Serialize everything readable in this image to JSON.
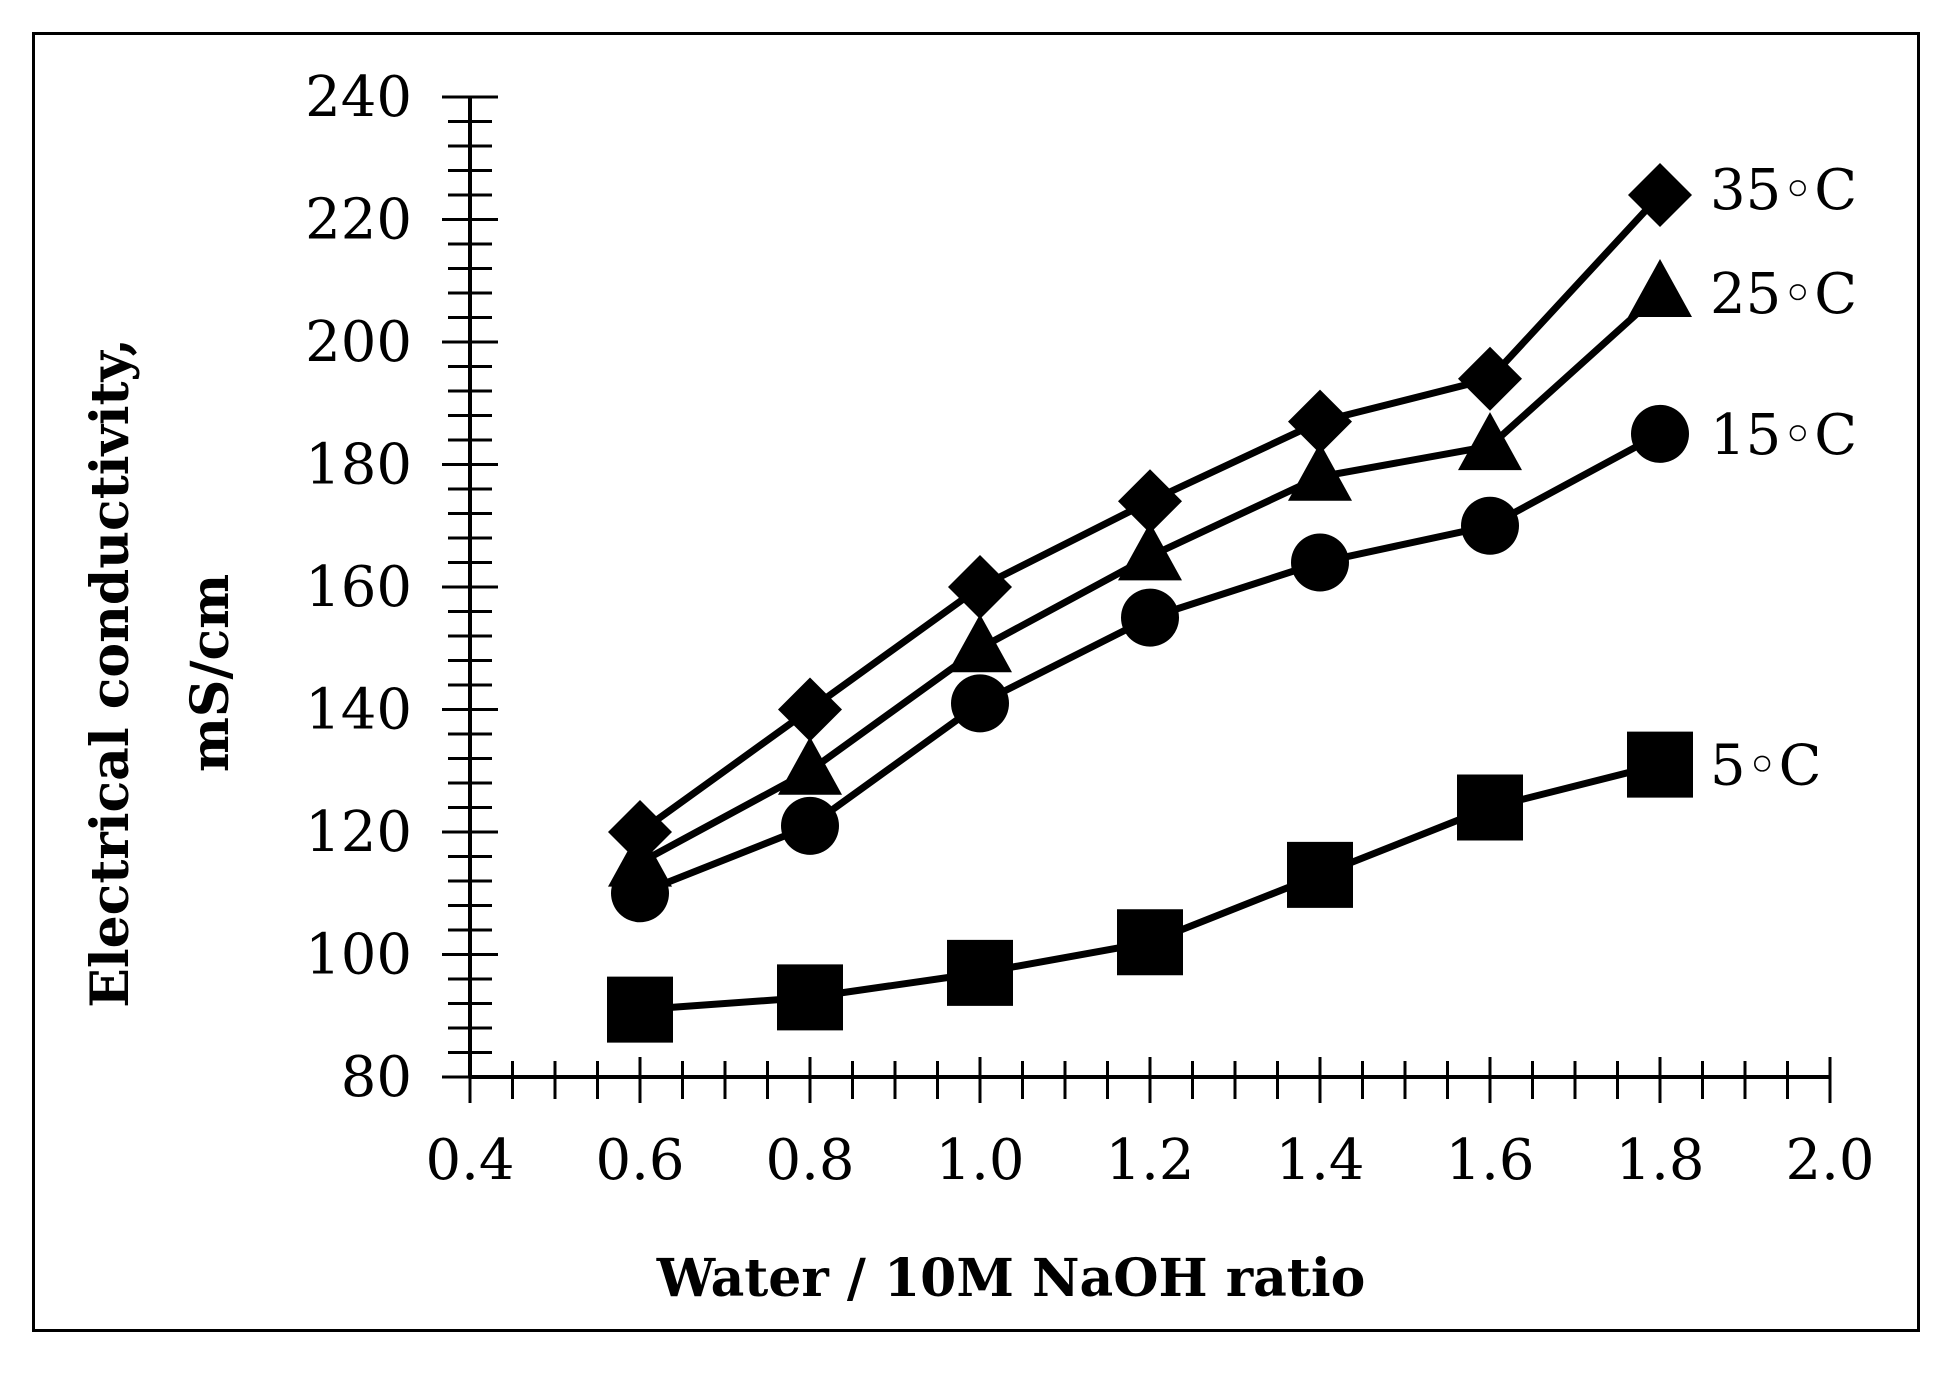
{
  "chart_data": {
    "type": "line",
    "title": "",
    "xlabel": "Water / 10M NaOH ratio",
    "ylabel_line1": "Electrical conductivity,",
    "ylabel_line2": "mS/cm",
    "xlim": [
      0.4,
      2.0
    ],
    "ylim": [
      80,
      240
    ],
    "x_major_ticks": [
      0.4,
      0.6,
      0.8,
      1.0,
      1.2,
      1.4,
      1.6,
      1.8,
      2.0
    ],
    "x_tick_labels": [
      "0.4",
      "0.6",
      "0.8",
      "1.0",
      "1.2",
      "1.4",
      "1.6",
      "1.8",
      "2.0"
    ],
    "x_minor_step": 0.05,
    "y_major_ticks": [
      80,
      100,
      120,
      140,
      160,
      180,
      200,
      220,
      240
    ],
    "y_tick_labels": [
      "80",
      "100",
      "120",
      "140",
      "160",
      "180",
      "200",
      "220",
      "240"
    ],
    "y_minor_step": 4,
    "grid": false,
    "x": [
      0.6,
      0.8,
      1.0,
      1.2,
      1.4,
      1.6,
      1.8
    ],
    "series": [
      {
        "name": "35°C",
        "label": "35◦C",
        "marker": "diamond",
        "values": [
          120,
          140,
          160,
          174,
          187,
          194,
          224
        ]
      },
      {
        "name": "25°C",
        "label": "25◦C",
        "marker": "triangle",
        "values": [
          115,
          130,
          150,
          165,
          178,
          183,
          208
        ]
      },
      {
        "name": "15°C",
        "label": "15◦C",
        "marker": "circle",
        "values": [
          110,
          121,
          141,
          155,
          164,
          170,
          185
        ]
      },
      {
        "name": "5°C",
        "label": "5◦C",
        "marker": "square",
        "values": [
          91,
          93,
          97,
          102,
          113,
          124,
          131
        ]
      }
    ],
    "colors": {
      "line": "#000000",
      "marker": "#000000",
      "background": "#ffffff"
    }
  }
}
